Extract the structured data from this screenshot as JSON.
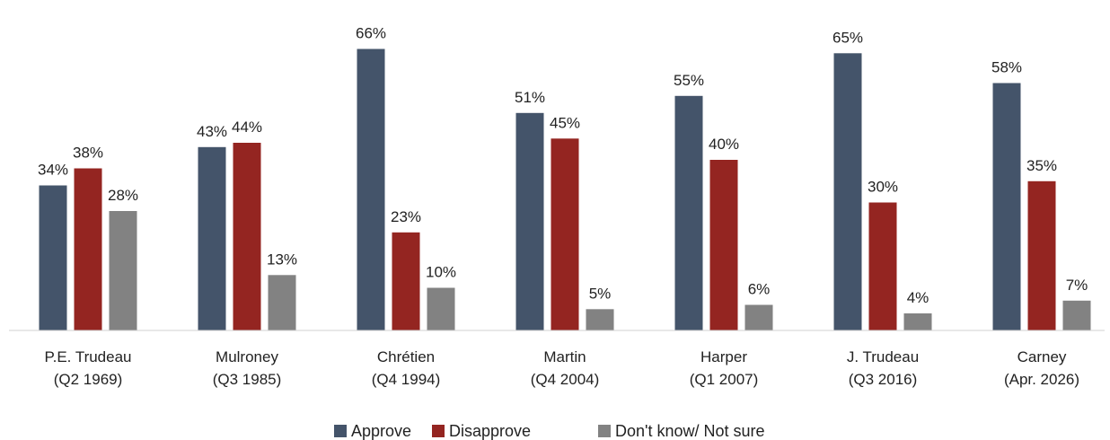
{
  "chart_data": {
    "type": "bar",
    "title": "",
    "xlabel": "",
    "ylabel": "",
    "ylim": [
      0,
      70
    ],
    "grid": false,
    "legend_position": "bottom",
    "value_suffix": "%",
    "categories": [
      [
        "P.E. Trudeau",
        "(Q2 1969)"
      ],
      [
        "Mulroney",
        "(Q3 1985)"
      ],
      [
        "Chrétien",
        "(Q4 1994)"
      ],
      [
        "Martin",
        "(Q4 2004)"
      ],
      [
        "Harper",
        "(Q1 2007)"
      ],
      [
        "J. Trudeau",
        "(Q3 2016)"
      ],
      [
        "Carney",
        "(Apr. 2026)"
      ]
    ],
    "series": [
      {
        "name": "Approve",
        "color": "#44546a",
        "values": [
          34,
          43,
          66,
          51,
          55,
          65,
          58
        ]
      },
      {
        "name": "Disapprove",
        "color": "#942521",
        "values": [
          38,
          44,
          23,
          45,
          40,
          30,
          35
        ]
      },
      {
        "name": "Don't know/ Not sure",
        "color": "#828282",
        "values": [
          28,
          13,
          10,
          5,
          6,
          4,
          7
        ]
      }
    ]
  }
}
